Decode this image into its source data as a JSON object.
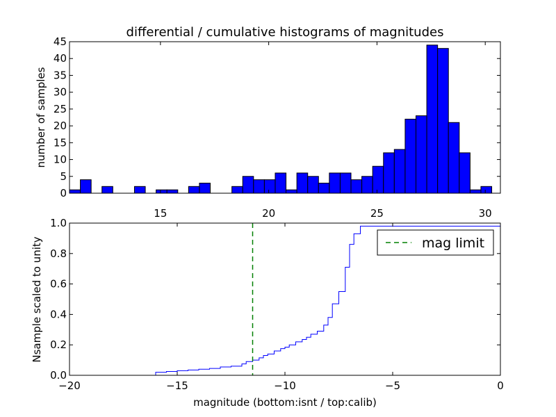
{
  "chart_data": [
    {
      "type": "bar",
      "title": "differential / cumulative histograms of magnitudes",
      "xlabel": "",
      "ylabel": "number of samples",
      "xlim": [
        10.8,
        30.7
      ],
      "ylim": [
        0,
        45
      ],
      "xticks": [
        15,
        20,
        25,
        30
      ],
      "yticks": [
        0,
        5,
        10,
        15,
        20,
        25,
        30,
        35,
        40,
        45
      ],
      "xtick_labels": [
        "15",
        "20",
        "25",
        "30"
      ],
      "ytick_labels": [
        "0",
        "5",
        "10",
        "15",
        "20",
        "25",
        "30",
        "35",
        "40",
        "45"
      ],
      "bin_edges": [
        10.8,
        11.3,
        11.8,
        12.3,
        12.8,
        13.3,
        13.8,
        14.3,
        14.8,
        15.3,
        15.8,
        16.3,
        16.8,
        17.3,
        17.8,
        18.3,
        18.8,
        19.3,
        19.8,
        20.3,
        20.8,
        21.3,
        21.8,
        22.3,
        22.8,
        23.3,
        23.8,
        24.3,
        24.8,
        25.3,
        25.8,
        26.3,
        26.8,
        27.3,
        27.8,
        28.3,
        28.8,
        29.3,
        29.8,
        30.3
      ],
      "values": [
        1,
        4,
        0,
        2,
        0,
        0,
        2,
        0,
        1,
        1,
        0,
        2,
        3,
        0,
        0,
        2,
        5,
        4,
        4,
        6,
        1,
        6,
        5,
        3,
        6,
        6,
        4,
        5,
        8,
        12,
        13,
        22,
        23,
        44,
        43,
        21,
        12,
        1,
        2
      ],
      "bar_color": "#0000ff",
      "grid": false
    },
    {
      "type": "line",
      "style": "step",
      "title": "",
      "xlabel": "magnitude (bottom:isnt / top:calib)",
      "ylabel": "Nsample scaled to unity",
      "xlim": [
        -20,
        0
      ],
      "ylim": [
        0,
        1
      ],
      "xticks": [
        -20,
        -15,
        -10,
        -5,
        0
      ],
      "yticks": [
        0.0,
        0.2,
        0.4,
        0.6,
        0.8,
        1.0
      ],
      "xtick_labels": [
        "−20",
        "−15",
        "−10",
        "−5",
        "0"
      ],
      "ytick_labels": [
        "0.0",
        "0.2",
        "0.4",
        "0.6",
        "0.8",
        "1.0"
      ],
      "series": [
        {
          "color": "#0000ff",
          "x": [
            -20,
            -16.0,
            -15.5,
            -15.0,
            -14.5,
            -14.0,
            -13.5,
            -13.0,
            -12.5,
            -12.0,
            -11.8,
            -11.5,
            -11.2,
            -11.0,
            -10.8,
            -10.5,
            -10.2,
            -10.0,
            -9.8,
            -9.5,
            -9.2,
            -9.0,
            -8.8,
            -8.5,
            -8.2,
            -8.0,
            -7.8,
            -7.5,
            -7.2,
            -7.0,
            -6.8,
            -6.5,
            0
          ],
          "y": [
            0.0,
            0.02,
            0.025,
            0.03,
            0.035,
            0.04,
            0.045,
            0.055,
            0.06,
            0.075,
            0.09,
            0.1,
            0.115,
            0.13,
            0.14,
            0.16,
            0.175,
            0.185,
            0.2,
            0.22,
            0.235,
            0.25,
            0.27,
            0.29,
            0.33,
            0.38,
            0.47,
            0.55,
            0.71,
            0.86,
            0.93,
            0.98,
            1.0
          ]
        },
        {
          "name": "mag limit",
          "color": "#008000",
          "dashed": true,
          "vertical_x": -11.5
        }
      ],
      "legend": {
        "entries": [
          "mag limit"
        ],
        "position": "top-right"
      },
      "grid": false
    }
  ]
}
